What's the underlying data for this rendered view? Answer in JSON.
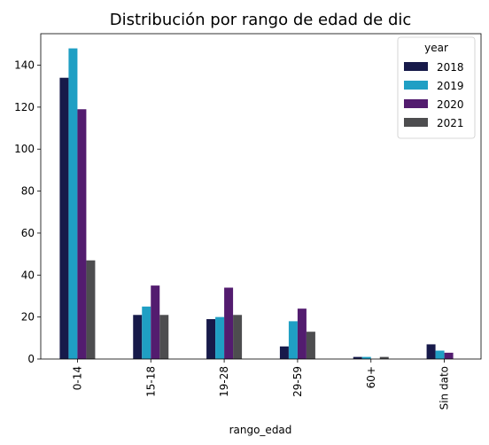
{
  "chart_data": {
    "type": "bar",
    "title": "Distribución por rango de edad de dic",
    "xlabel": "rango_edad",
    "ylabel": "",
    "categories": [
      "0-14",
      "15-18",
      "19-28",
      "29-59",
      "60+",
      "Sin dato"
    ],
    "ylim": [
      0,
      155
    ],
    "yticks": [
      0,
      20,
      40,
      60,
      80,
      100,
      120,
      140
    ],
    "grid": false,
    "legend": {
      "title": "year",
      "placement": "top-right"
    },
    "series": [
      {
        "name": "2018",
        "color": "#171a4a",
        "values": [
          134,
          21,
          19,
          6,
          1,
          7
        ]
      },
      {
        "name": "2019",
        "color": "#1f9fc4",
        "values": [
          148,
          25,
          20,
          18,
          1,
          4
        ]
      },
      {
        "name": "2020",
        "color": "#531c6f",
        "values": [
          119,
          35,
          34,
          24,
          0,
          3
        ]
      },
      {
        "name": "2021",
        "color": "#4d4d4f",
        "values": [
          47,
          21,
          21,
          13,
          1,
          0
        ]
      }
    ]
  }
}
